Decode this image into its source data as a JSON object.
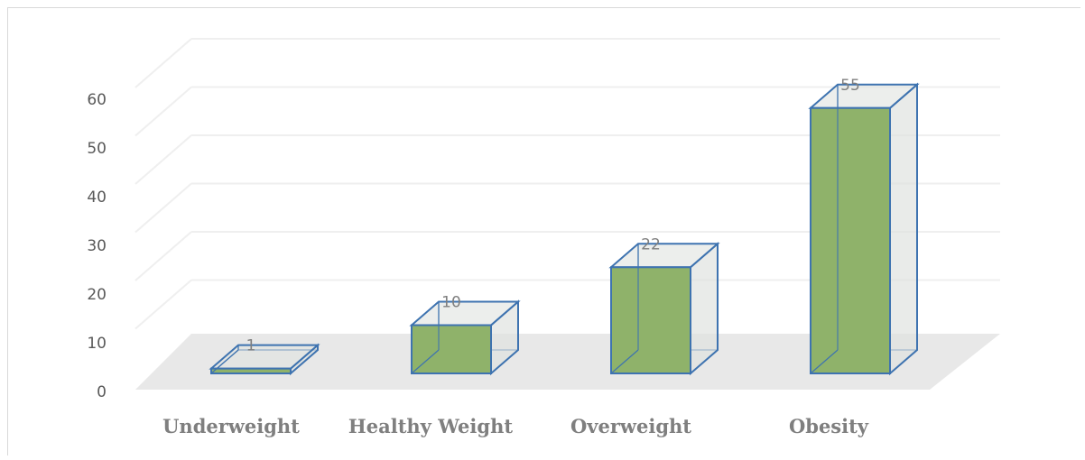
{
  "chart_data": {
    "type": "bar",
    "categories": [
      "Underweight",
      "Healthy Weight",
      "Overweight",
      "Obesity"
    ],
    "values": [
      1,
      10,
      22,
      55
    ],
    "y_ticks": [
      0,
      10,
      20,
      30,
      40,
      50,
      60
    ],
    "ylim": [
      0,
      60
    ],
    "grid": true,
    "legend": "none",
    "colors": {
      "bar_fill": "#8fb26a",
      "bar_edge": "#3e73b0",
      "side_fill": "#dfe3e0",
      "floor": "#e8e8e8",
      "grid": "#efefef"
    }
  }
}
